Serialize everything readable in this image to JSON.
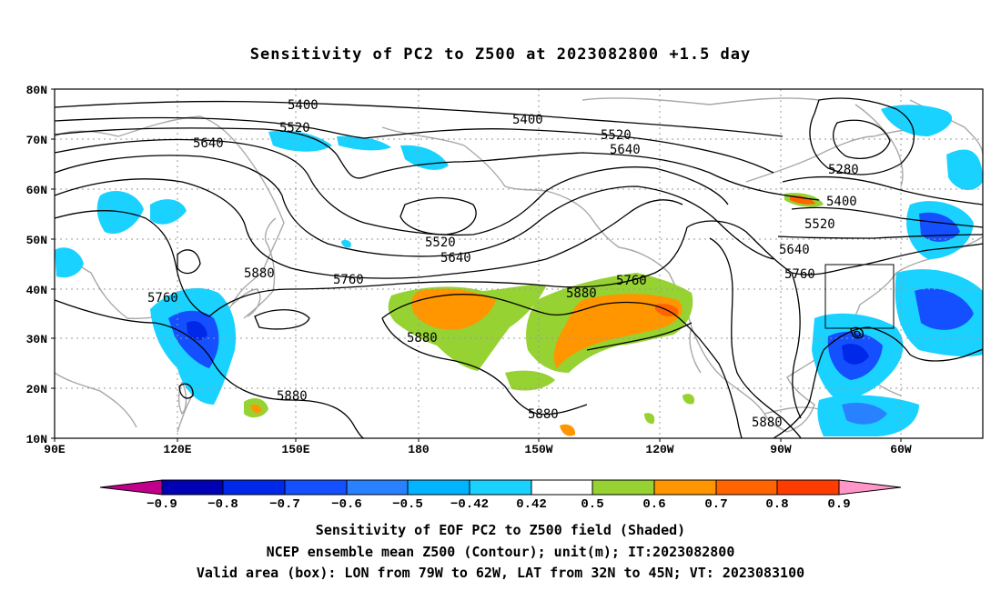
{
  "title": "Sensitivity of PC2 to Z500 at 2023082800 +1.5 day",
  "map": {
    "lat_labels": [
      "80N",
      "70N",
      "60N",
      "50N",
      "40N",
      "30N",
      "20N",
      "10N"
    ],
    "lon_labels": [
      "90E",
      "120E",
      "150E",
      "180",
      "150W",
      "120W",
      "90W",
      "60W"
    ],
    "contour_labels": {
      "c5400a": "5400",
      "c5400b": "5400",
      "c5400c": "5400",
      "c5520a": "5520",
      "c5520b": "5520",
      "c5520c": "5520",
      "c5520d": "5520",
      "c5640a": "5640",
      "c5640b": "5640",
      "c5640c": "5640",
      "c5640d": "5640",
      "c5280": "5280",
      "c5760a": "5760",
      "c5760b": "5760",
      "c5760c": "5760",
      "c5760d": "5760",
      "c5880a": "5880",
      "c5880b": "5880",
      "c5880c": "5880",
      "c5880d": "5880",
      "c5880e": "5880",
      "c5880f": "5880"
    },
    "valid_box": {
      "lon_from": "79W",
      "lon_to": "62W",
      "lat_from": "32N",
      "lat_to": "45N"
    }
  },
  "colorbar": {
    "labels": [
      "−0.9",
      "−0.8",
      "−0.7",
      "−0.6",
      "−0.5",
      "−0.42",
      "0.42",
      "0.5",
      "0.6",
      "0.7",
      "0.8",
      "0.9"
    ],
    "colors": [
      "#c0008a",
      "#0000b4",
      "#0028e8",
      "#1450ff",
      "#2882ff",
      "#00b4ff",
      "#19d2ff",
      "#ffffff",
      "#96d232",
      "#ff9600",
      "#ff6400",
      "#ff3c00",
      "#ff0000",
      "#ff96c8"
    ]
  },
  "footer": {
    "line1": "Sensitivity of EOF PC2 to Z500 field (Shaded)",
    "line2": "NCEP ensemble mean Z500 (Contour); unit(m); IT:2023082800",
    "line3": "Valid area (box): LON from 79W to 62W, LAT from 32N to 45N; VT: 2023083100"
  }
}
